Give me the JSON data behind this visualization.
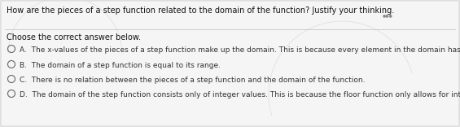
{
  "title": "How are the pieces of a step function related to the domain of the function? Justify your thinking.",
  "subtitle": "Choose the correct answer below.",
  "options": [
    "A.  The x-values of the pieces of a step function make up the domain. This is because every element in the domain has to be in one of the pieces.",
    "B.  The domain of a step function is equal to its range.",
    "C.  There is no relation between the pieces of a step function and the domain of the function.",
    "D.  The domain of the step function consists only of integer values. This is because the floor function only allows for integer y-values."
  ],
  "bg_color": "#e8e8e8",
  "inner_bg_color": "#f0f0f0",
  "title_fontsize": 7.0,
  "subtitle_fontsize": 7.0,
  "option_fontsize": 6.5,
  "title_color": "#111111",
  "subtitle_color": "#111111",
  "option_color": "#333333",
  "radio_color": "#666666",
  "sep_color": "#bbbbbb",
  "watermark_color": "#d8d8d8"
}
